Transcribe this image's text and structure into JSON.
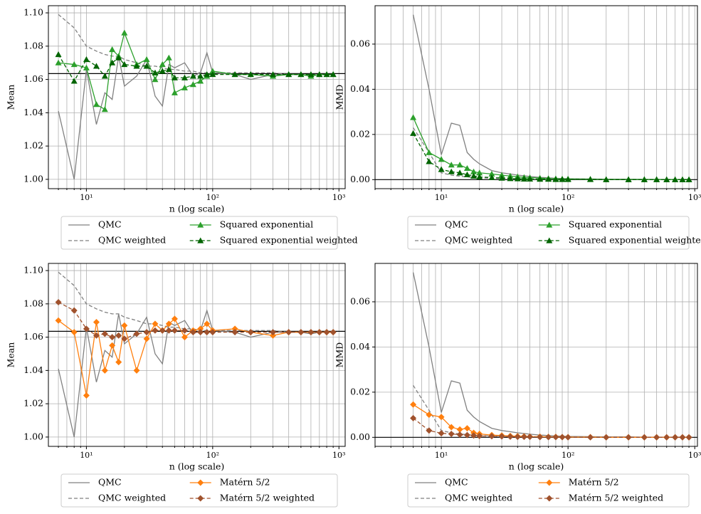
{
  "chart_data": [
    {
      "type": "line",
      "ylabel": "Mean",
      "xlabel": "n (log scale)",
      "log_x": true,
      "grid": true,
      "xlim": [
        5,
        1120
      ],
      "xticks": [
        {
          "value": 10,
          "label": "10¹"
        },
        {
          "value": 100,
          "label": "10²"
        },
        {
          "value": 1000,
          "label": "10³"
        }
      ],
      "x_minor_ticks": [
        6,
        7,
        8,
        9,
        20,
        30,
        40,
        50,
        60,
        70,
        80,
        90,
        200,
        300,
        400,
        500,
        600,
        700,
        800,
        900
      ],
      "ylim": [
        0.9944,
        1.1043
      ],
      "yticks": [
        {
          "value": 1.0,
          "label": "1.00"
        },
        {
          "value": 1.02,
          "label": "1.02"
        },
        {
          "value": 1.04,
          "label": "1.04"
        },
        {
          "value": 1.06,
          "label": "1.06"
        },
        {
          "value": 1.08,
          "label": "1.08"
        },
        {
          "value": 1.1,
          "label": "1.10"
        }
      ],
      "reference_line": 1.0635,
      "legend": "below",
      "x": [
        6,
        8,
        10,
        12,
        14,
        16,
        18,
        20,
        25,
        30,
        35,
        40,
        45,
        50,
        60,
        70,
        80,
        90,
        100,
        150,
        200,
        300,
        400,
        500,
        600,
        700,
        800,
        900
      ],
      "series": [
        {
          "name": "QMC",
          "color": "#808080",
          "dashed": false,
          "marker": null,
          "values": [
            1.041,
            1.0,
            1.066,
            1.033,
            1.052,
            1.048,
            1.074,
            1.056,
            1.062,
            1.072,
            1.05,
            1.044,
            1.069,
            1.067,
            1.07,
            1.062,
            1.064,
            1.076,
            1.064,
            1.063,
            1.06,
            1.063,
            1.063,
            1.063,
            1.062,
            1.063,
            1.063,
            1.063
          ]
        },
        {
          "name": "QMC weighted",
          "color": "#808080",
          "dashed": true,
          "marker": null,
          "values": [
            1.099,
            1.091,
            1.08,
            1.077,
            1.075,
            1.074,
            1.074,
            1.072,
            1.07,
            1.068,
            1.068,
            1.067,
            1.066,
            1.066,
            1.065,
            1.065,
            1.064,
            1.064,
            1.064,
            1.064,
            1.064,
            1.064,
            1.063,
            1.063,
            1.063,
            1.063,
            1.063,
            1.063
          ]
        },
        {
          "name": "Squared exponential",
          "color": "#2ca02c",
          "dashed": false,
          "marker": "triangle",
          "values": [
            1.07,
            1.069,
            1.067,
            1.045,
            1.042,
            1.078,
            1.074,
            1.088,
            1.069,
            1.072,
            1.06,
            1.069,
            1.073,
            1.052,
            1.055,
            1.057,
            1.059,
            1.062,
            1.065,
            1.063,
            1.063,
            1.062,
            1.063,
            1.063,
            1.062,
            1.063,
            1.063,
            1.063
          ]
        },
        {
          "name": "Squared exponential weighted",
          "color": "#006400",
          "dashed": true,
          "marker": "triangle",
          "values": [
            1.075,
            1.059,
            1.072,
            1.068,
            1.062,
            1.07,
            1.073,
            1.069,
            1.068,
            1.068,
            1.064,
            1.065,
            1.066,
            1.061,
            1.061,
            1.062,
            1.062,
            1.063,
            1.063,
            1.063,
            1.063,
            1.063,
            1.063,
            1.063,
            1.063,
            1.063,
            1.063,
            1.063
          ]
        }
      ]
    },
    {
      "type": "line",
      "ylabel": "MMD",
      "xlabel": "n (log scale)",
      "log_x": true,
      "grid": true,
      "xlim": [
        3,
        1050
      ],
      "xticks": [
        {
          "value": 10,
          "label": "10¹"
        },
        {
          "value": 100,
          "label": "10²"
        },
        {
          "value": 1000,
          "label": "10³"
        }
      ],
      "x_minor_ticks": [
        3,
        4,
        5,
        6,
        7,
        8,
        9,
        20,
        30,
        40,
        50,
        60,
        70,
        80,
        90,
        200,
        300,
        400,
        500,
        600,
        700,
        800,
        900
      ],
      "ylim": [
        -0.004,
        0.077
      ],
      "yticks": [
        {
          "value": 0,
          "label": "0.00"
        },
        {
          "value": 0.02,
          "label": "0.02"
        },
        {
          "value": 0.04,
          "label": "0.04"
        },
        {
          "value": 0.06,
          "label": "0.06"
        }
      ],
      "reference_line": 0,
      "legend": "below",
      "x": [
        6,
        8,
        10,
        12,
        14,
        16,
        18,
        20,
        25,
        30,
        35,
        40,
        45,
        50,
        60,
        70,
        80,
        90,
        100,
        150,
        200,
        300,
        400,
        500,
        600,
        700,
        800,
        900
      ],
      "series": [
        {
          "name": "QMC",
          "color": "#808080",
          "dashed": false,
          "marker": null,
          "values": [
            0.073,
            0.04,
            0.011,
            0.025,
            0.024,
            0.012,
            0.009,
            0.007,
            0.004,
            0.003,
            0.0025,
            0.002,
            0.0017,
            0.0014,
            0.001,
            0.0008,
            0.0006,
            0.0005,
            0.0004,
            0.0003,
            0.0002,
            0.0002,
            0.0001,
            0.0001,
            0.0001,
            0.0001,
            0.0001,
            0.0001
          ]
        },
        {
          "name": "QMC weighted",
          "color": "#808080",
          "dashed": true,
          "marker": null,
          "values": [
            0.023,
            0.012,
            0.003,
            0.002,
            0.0015,
            0.0012,
            0.001,
            0.0008,
            0.0006,
            0.0005,
            0.0004,
            0.0003,
            0.0003,
            0.0002,
            0.0002,
            0.0002,
            0.0001,
            0.0001,
            0.0001,
            0.0001,
            0.0001,
            0,
            0,
            0,
            0,
            0,
            0,
            0
          ]
        },
        {
          "name": "Squared exponential",
          "color": "#2ca02c",
          "dashed": false,
          "marker": "triangle",
          "values": [
            0.0275,
            0.012,
            0.009,
            0.0065,
            0.0065,
            0.005,
            0.0035,
            0.003,
            0.0025,
            0.002,
            0.0016,
            0.0013,
            0.001,
            0.0009,
            0.0007,
            0.0005,
            0.0004,
            0.0003,
            0.0003,
            0.0002,
            0.0001,
            0.0001,
            0.0001,
            0.0001,
            0,
            0,
            0,
            0
          ]
        },
        {
          "name": "Squared exponential weighted",
          "color": "#006400",
          "dashed": true,
          "marker": "triangle",
          "values": [
            0.0205,
            0.008,
            0.0045,
            0.0035,
            0.003,
            0.0022,
            0.0016,
            0.0012,
            0.0009,
            0.0007,
            0.0005,
            0.0004,
            0.0003,
            0.0003,
            0.0002,
            0.0002,
            0.0001,
            0.0001,
            0.0001,
            0.0001,
            0,
            0,
            0,
            0,
            0,
            0,
            0,
            0
          ]
        }
      ]
    },
    {
      "type": "line",
      "ylabel": "Mean",
      "xlabel": "n (log scale)",
      "log_x": true,
      "grid": true,
      "xlim": [
        5,
        1120
      ],
      "xticks": [
        {
          "value": 10,
          "label": "10¹"
        },
        {
          "value": 100,
          "label": "10²"
        },
        {
          "value": 1000,
          "label": "10³"
        }
      ],
      "x_minor_ticks": [
        6,
        7,
        8,
        9,
        20,
        30,
        40,
        50,
        60,
        70,
        80,
        90,
        200,
        300,
        400,
        500,
        600,
        700,
        800,
        900
      ],
      "ylim": [
        0.9944,
        1.1043
      ],
      "yticks": [
        {
          "value": 1.0,
          "label": "1.00"
        },
        {
          "value": 1.02,
          "label": "1.02"
        },
        {
          "value": 1.04,
          "label": "1.04"
        },
        {
          "value": 1.06,
          "label": "1.06"
        },
        {
          "value": 1.08,
          "label": "1.08"
        },
        {
          "value": 1.1,
          "label": "1.10"
        }
      ],
      "reference_line": 1.0635,
      "legend": "below",
      "x": [
        6,
        8,
        10,
        12,
        14,
        16,
        18,
        20,
        25,
        30,
        35,
        40,
        45,
        50,
        60,
        70,
        80,
        90,
        100,
        150,
        200,
        300,
        400,
        500,
        600,
        700,
        800,
        900
      ],
      "series": [
        {
          "name": "QMC",
          "color": "#808080",
          "dashed": false,
          "marker": null,
          "values": [
            1.041,
            1.0,
            1.066,
            1.033,
            1.052,
            1.048,
            1.074,
            1.056,
            1.062,
            1.072,
            1.05,
            1.044,
            1.069,
            1.067,
            1.07,
            1.062,
            1.064,
            1.076,
            1.064,
            1.063,
            1.06,
            1.063,
            1.063,
            1.063,
            1.062,
            1.063,
            1.063,
            1.063
          ]
        },
        {
          "name": "QMC weighted",
          "color": "#808080",
          "dashed": true,
          "marker": null,
          "values": [
            1.099,
            1.091,
            1.08,
            1.077,
            1.075,
            1.074,
            1.074,
            1.072,
            1.07,
            1.068,
            1.068,
            1.067,
            1.066,
            1.066,
            1.065,
            1.065,
            1.064,
            1.064,
            1.064,
            1.064,
            1.064,
            1.064,
            1.063,
            1.063,
            1.063,
            1.063,
            1.063,
            1.063
          ]
        },
        {
          "name": "Matérn 5/2",
          "color": "#ff7f0e",
          "dashed": false,
          "marker": "diamond",
          "values": [
            1.07,
            1.063,
            1.025,
            1.069,
            1.04,
            1.055,
            1.045,
            1.067,
            1.04,
            1.059,
            1.068,
            1.064,
            1.068,
            1.071,
            1.06,
            1.064,
            1.065,
            1.068,
            1.064,
            1.065,
            1.063,
            1.061,
            1.063,
            1.063,
            1.063,
            1.063,
            1.063,
            1.063
          ]
        },
        {
          "name": "Matérn 5/2 weighted",
          "color": "#a0522d",
          "dashed": true,
          "marker": "diamond",
          "values": [
            1.081,
            1.076,
            1.065,
            1.061,
            1.062,
            1.06,
            1.061,
            1.059,
            1.062,
            1.063,
            1.064,
            1.064,
            1.064,
            1.064,
            1.064,
            1.063,
            1.063,
            1.063,
            1.063,
            1.063,
            1.063,
            1.063,
            1.063,
            1.063,
            1.063,
            1.063,
            1.063,
            1.063
          ]
        }
      ]
    },
    {
      "type": "line",
      "ylabel": "MMD",
      "xlabel": "n (log scale)",
      "log_x": true,
      "grid": true,
      "xlim": [
        3,
        1050
      ],
      "xticks": [
        {
          "value": 10,
          "label": "10¹"
        },
        {
          "value": 100,
          "label": "10²"
        },
        {
          "value": 1000,
          "label": "10³"
        }
      ],
      "x_minor_ticks": [
        3,
        4,
        5,
        6,
        7,
        8,
        9,
        20,
        30,
        40,
        50,
        60,
        70,
        80,
        90,
        200,
        300,
        400,
        500,
        600,
        700,
        800,
        900
      ],
      "ylim": [
        -0.004,
        0.077
      ],
      "yticks": [
        {
          "value": 0,
          "label": "0.00"
        },
        {
          "value": 0.02,
          "label": "0.02"
        },
        {
          "value": 0.04,
          "label": "0.04"
        },
        {
          "value": 0.06,
          "label": "0.06"
        }
      ],
      "reference_line": 0,
      "legend": "below",
      "x": [
        6,
        8,
        10,
        12,
        14,
        16,
        18,
        20,
        25,
        30,
        35,
        40,
        45,
        50,
        60,
        70,
        80,
        90,
        100,
        150,
        200,
        300,
        400,
        500,
        600,
        700,
        800,
        900
      ],
      "series": [
        {
          "name": "QMC",
          "color": "#808080",
          "dashed": false,
          "marker": null,
          "values": [
            0.073,
            0.04,
            0.011,
            0.025,
            0.024,
            0.012,
            0.009,
            0.007,
            0.004,
            0.003,
            0.0025,
            0.002,
            0.0017,
            0.0014,
            0.001,
            0.0008,
            0.0006,
            0.0005,
            0.0004,
            0.0003,
            0.0002,
            0.0002,
            0.0001,
            0.0001,
            0.0001,
            0.0001,
            0.0001,
            0.0001
          ]
        },
        {
          "name": "QMC weighted",
          "color": "#808080",
          "dashed": true,
          "marker": null,
          "values": [
            0.023,
            0.012,
            0.003,
            0.002,
            0.0015,
            0.0012,
            0.001,
            0.0008,
            0.0006,
            0.0005,
            0.0004,
            0.0003,
            0.0003,
            0.0002,
            0.0002,
            0.0002,
            0.0001,
            0.0001,
            0.0001,
            0.0001,
            0.0001,
            0,
            0,
            0,
            0,
            0,
            0,
            0
          ]
        },
        {
          "name": "Matérn 5/2",
          "color": "#ff7f0e",
          "dashed": false,
          "marker": "diamond",
          "values": [
            0.0145,
            0.01,
            0.009,
            0.0045,
            0.0035,
            0.004,
            0.002,
            0.0015,
            0.001,
            0.0008,
            0.0006,
            0.0005,
            0.0004,
            0.0003,
            0.0003,
            0.0002,
            0.0002,
            0.0001,
            0.0001,
            0.0001,
            0,
            0,
            0,
            0,
            0,
            0,
            0,
            0
          ]
        },
        {
          "name": "Matérn 5/2 weighted",
          "color": "#a0522d",
          "dashed": true,
          "marker": "diamond",
          "values": [
            0.0085,
            0.003,
            0.0018,
            0.0015,
            0.0012,
            0.001,
            0.0008,
            0.0006,
            0.0005,
            0.0004,
            0.0003,
            0.0002,
            0.0002,
            0.0002,
            0.0001,
            0.0001,
            0.0001,
            0.0001,
            0,
            0,
            0,
            0,
            0,
            0,
            0,
            0,
            0,
            0
          ]
        }
      ]
    }
  ]
}
